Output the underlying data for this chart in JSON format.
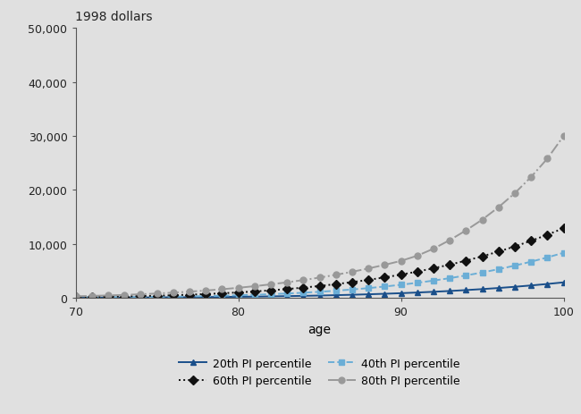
{
  "ages": [
    70,
    71,
    72,
    73,
    74,
    75,
    76,
    77,
    78,
    79,
    80,
    81,
    82,
    83,
    84,
    85,
    86,
    87,
    88,
    89,
    90,
    91,
    92,
    93,
    94,
    95,
    96,
    97,
    98,
    99,
    100
  ],
  "p20": [
    30,
    40,
    50,
    60,
    72,
    86,
    102,
    121,
    143,
    168,
    198,
    232,
    271,
    316,
    368,
    427,
    494,
    570,
    656,
    753,
    862,
    984,
    1120,
    1270,
    1436,
    1620,
    1824,
    2048,
    2296,
    2569,
    2870
  ],
  "p40": [
    60,
    76,
    95,
    118,
    146,
    180,
    220,
    268,
    325,
    392,
    471,
    564,
    673,
    800,
    948,
    1120,
    1318,
    1545,
    1803,
    2094,
    2421,
    2787,
    3195,
    3648,
    4150,
    4703,
    5310,
    5975,
    6700,
    7490,
    8350
  ],
  "p60": [
    130,
    165,
    207,
    258,
    320,
    393,
    480,
    583,
    703,
    842,
    1002,
    1185,
    1394,
    1631,
    1899,
    2200,
    2537,
    2913,
    3330,
    3792,
    4302,
    4863,
    5479,
    6154,
    6892,
    7698,
    8577,
    9533,
    10570,
    11693,
    12910
  ],
  "p80": [
    290,
    360,
    445,
    545,
    663,
    800,
    960,
    1143,
    1353,
    1591,
    1860,
    2162,
    2500,
    2876,
    3294,
    3756,
    4266,
    4827,
    5442,
    6115,
    6850,
    7800,
    9100,
    10700,
    12500,
    14500,
    16800,
    19400,
    22400,
    25800,
    30000
  ],
  "ylim": [
    0,
    50000
  ],
  "yticks": [
    0,
    10000,
    20000,
    30000,
    40000,
    50000
  ],
  "xlim": [
    70,
    100
  ],
  "xticks": [
    70,
    80,
    90,
    100
  ],
  "ylabel": "1998 dollars",
  "xlabel": "age",
  "bg_color": "#e0e0e0",
  "plot_bg_color": "#e0e0e0",
  "line_colors": {
    "p20": "#1a4f8a",
    "p40": "#6baed6",
    "p60": "#111111",
    "p80": "#999999"
  },
  "legend": {
    "p20_label": "20th PI percentile",
    "p40_label": "40th PI percentile",
    "p60_label": "60th PI percentile",
    "p80_label": "80th PI percentile"
  }
}
